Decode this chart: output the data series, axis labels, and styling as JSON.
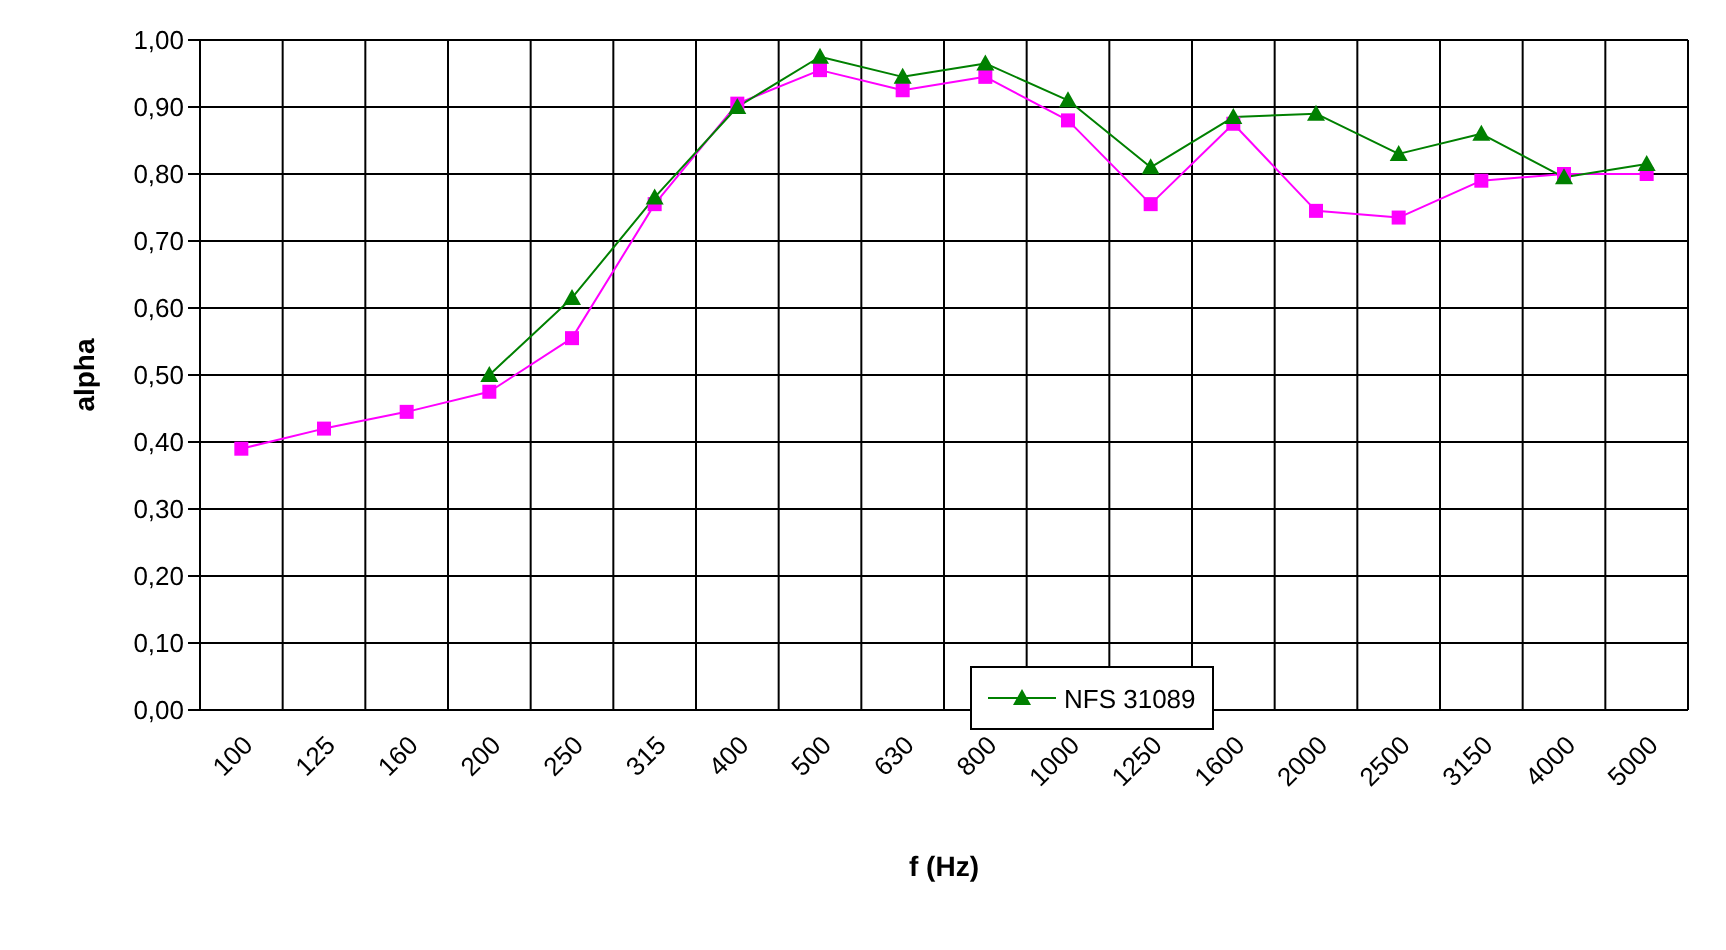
{
  "chart_data": {
    "type": "line",
    "xlabel": "f (Hz)",
    "ylabel": "alpha",
    "categories": [
      "100",
      "125",
      "160",
      "200",
      "250",
      "315",
      "400",
      "500",
      "630",
      "800",
      "1000",
      "1250",
      "1600",
      "2000",
      "2500",
      "3150",
      "4000",
      "5000"
    ],
    "series": [
      {
        "color": "#ff00ff",
        "marker": "square",
        "values": [
          0.39,
          0.42,
          0.445,
          0.475,
          0.555,
          0.755,
          0.905,
          0.955,
          0.925,
          0.945,
          0.88,
          0.755,
          0.875,
          0.745,
          0.735,
          0.79,
          0.8,
          0.8
        ]
      },
      {
        "name": "NFS 31089",
        "color": "#008000",
        "marker": "triangle",
        "values": [
          null,
          null,
          null,
          0.5,
          0.615,
          0.765,
          0.9,
          0.975,
          0.945,
          0.965,
          0.91,
          0.81,
          0.885,
          0.89,
          0.83,
          0.86,
          0.795,
          0.815
        ]
      }
    ],
    "ylim": [
      0,
      1
    ],
    "yticks": [
      {
        "value": 0,
        "label": "0,00"
      },
      {
        "value": 0.1,
        "label": "0,10"
      },
      {
        "value": 0.2,
        "label": "0,20"
      },
      {
        "value": 0.3,
        "label": "0,30"
      },
      {
        "value": 0.4,
        "label": "0,40"
      },
      {
        "value": 0.5,
        "label": "0,50"
      },
      {
        "value": 0.6,
        "label": "0,60"
      },
      {
        "value": 0.7,
        "label": "0,70"
      },
      {
        "value": 0.8,
        "label": "0,80"
      },
      {
        "value": 0.9,
        "label": "0,90"
      },
      {
        "value": 1,
        "label": "1,00"
      }
    ],
    "grid": true,
    "legend": "bottom"
  }
}
